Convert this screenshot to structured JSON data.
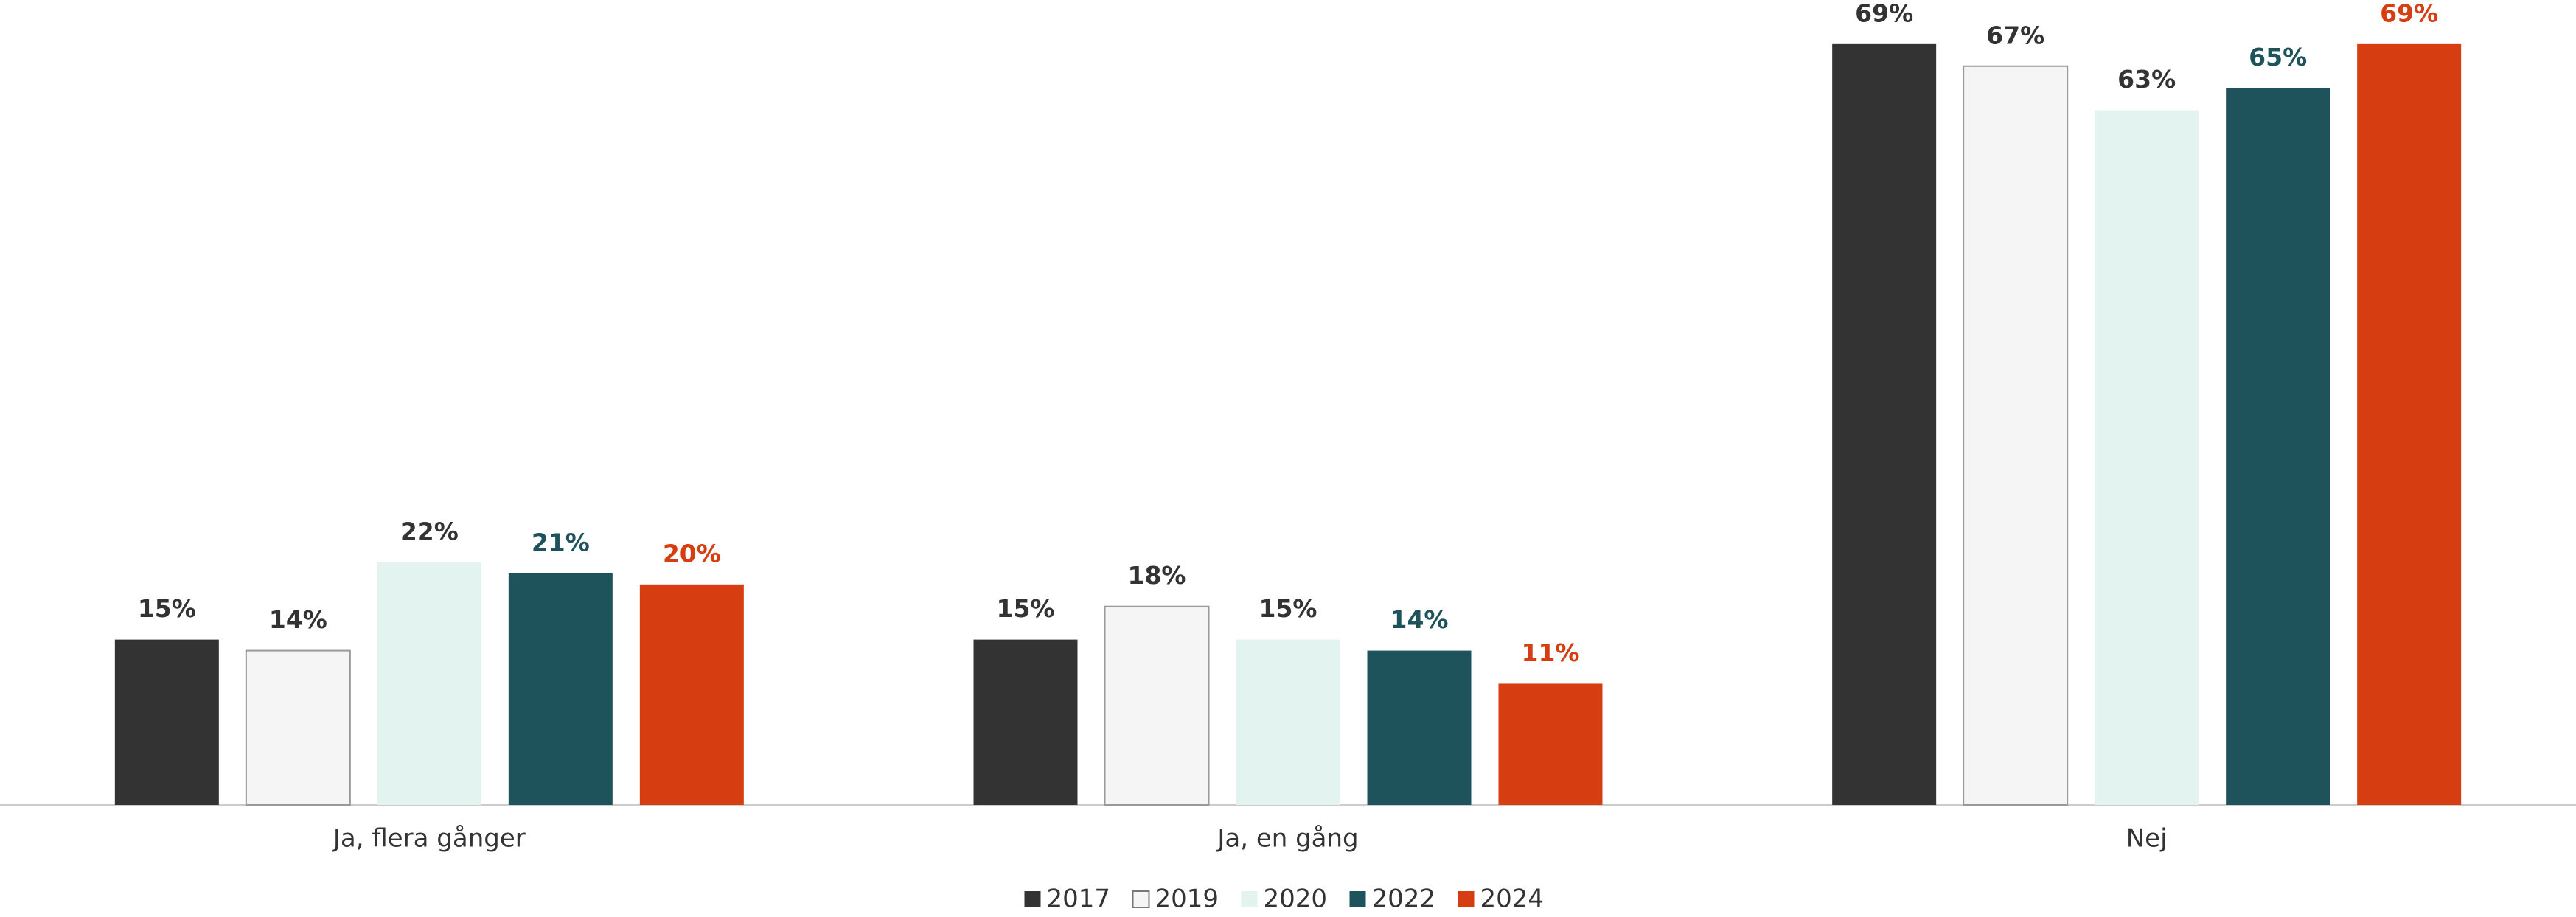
{
  "chart_data": {
    "type": "bar",
    "categories": [
      "Ja, flera gånger",
      "Ja, en gång",
      "Nej"
    ],
    "series": [
      {
        "name": "2017",
        "color": "#333333",
        "values": [
          15,
          15,
          69
        ],
        "value_labels": [
          "15%",
          "15%",
          "69%"
        ]
      },
      {
        "name": "2019",
        "color": "#f5f5f5",
        "values": [
          14,
          18,
          67
        ],
        "value_labels": [
          "14%",
          "18%",
          "67%"
        ]
      },
      {
        "name": "2020",
        "color": "#e3f3f0",
        "values": [
          22,
          15,
          63
        ],
        "value_labels": [
          "22%",
          "15%",
          "63%"
        ]
      },
      {
        "name": "2022",
        "color": "#1e535c",
        "values": [
          21,
          14,
          65
        ],
        "value_labels": [
          "21%",
          "14%",
          "65%"
        ]
      },
      {
        "name": "2024",
        "color": "#d63d10",
        "values": [
          20,
          11,
          69
        ],
        "value_labels": [
          "20%",
          "11%",
          "69%"
        ]
      }
    ],
    "ylim": [
      0,
      73
    ]
  }
}
